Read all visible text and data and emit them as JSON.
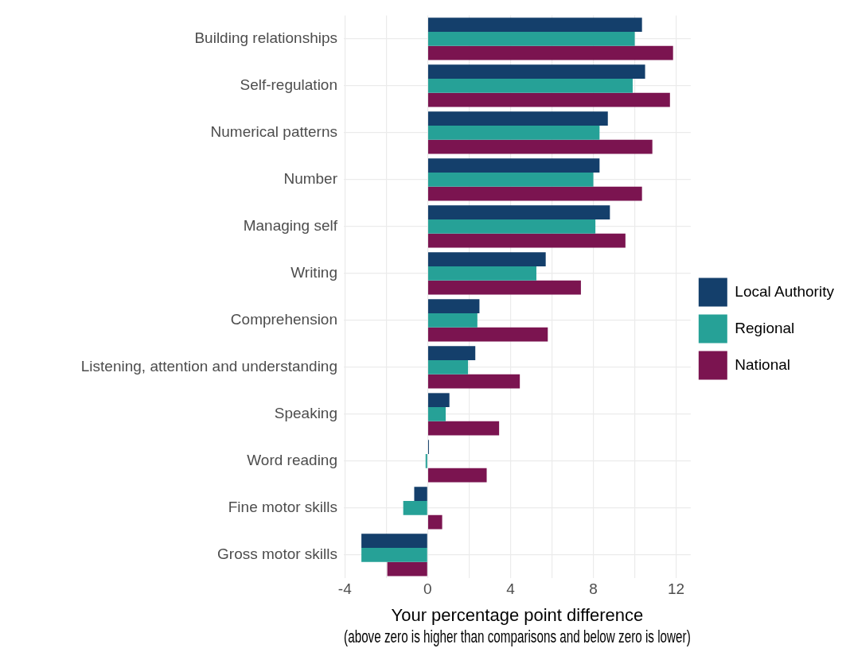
{
  "chart_data": {
    "type": "bar",
    "orientation": "horizontal",
    "xlabel": "Your percentage point difference\n(above zero is higher than comparisons and below zero is lower)",
    "categories": [
      "Building relationships",
      "Self-regulation",
      "Numerical patterns",
      "Number",
      "Managing self",
      "Writing",
      "Comprehension",
      "Listening, attention and understanding",
      "Speaking",
      "Word reading",
      "Fine motor skills",
      "Gross motor skills"
    ],
    "series": [
      {
        "name": "Local Authority",
        "color": "#143f6b",
        "values": [
          10.35,
          10.5,
          8.7,
          8.3,
          8.8,
          5.7,
          2.5,
          2.3,
          1.05,
          0.06,
          -0.65,
          -3.2
        ]
      },
      {
        "name": "Regional",
        "color": "#26a197",
        "values": [
          10.0,
          9.9,
          8.3,
          8.0,
          8.1,
          5.25,
          2.4,
          1.95,
          0.87,
          -0.1,
          -1.18,
          -3.2
        ]
      },
      {
        "name": "National",
        "color": "#7b1450",
        "values": [
          11.85,
          11.7,
          10.85,
          10.35,
          9.55,
          7.4,
          5.8,
          4.45,
          3.45,
          2.85,
          0.7,
          -1.95
        ]
      }
    ],
    "xlim": [
      -4.05,
      12.7
    ],
    "xticks": [
      -4,
      {
        "value": -2,
        "label": null
      },
      0,
      {
        "value": 2,
        "label": null
      },
      4,
      {
        "value": 6,
        "label": null
      },
      8,
      {
        "value": 10,
        "label": null
      },
      12
    ],
    "grid": true,
    "legend": "right"
  }
}
